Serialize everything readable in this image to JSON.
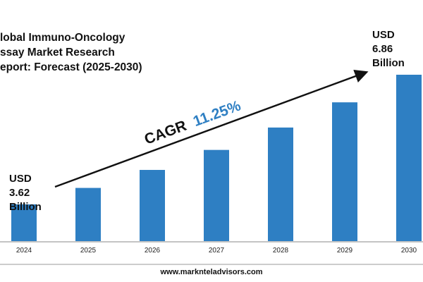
{
  "chart_data": {
    "type": "bar",
    "title_lines": [
      "lobal Immuno-Oncology",
      "ssay Market Research",
      "eport: Forecast (2025-2030)"
    ],
    "categories": [
      "2024",
      "2025",
      "2026",
      "2027",
      "2028",
      "2029",
      "2030"
    ],
    "values": [
      3.62,
      4.03,
      4.48,
      4.98,
      5.54,
      6.17,
      6.86
    ],
    "unit": "USD Billion",
    "ylim": [
      2.7,
      7.0
    ],
    "bar_color": "#2e7fc3",
    "start_label": [
      "USD",
      "3.62",
      "Billion"
    ],
    "end_label": [
      "USD",
      "6.86",
      "Billion"
    ],
    "cagr": {
      "prefix": "CAGR",
      "value": "11.25%",
      "prefix_color": "#111111",
      "value_color": "#2e7fc3"
    },
    "grid": false,
    "legend": "none"
  },
  "footer": {
    "website": "www.marknteladvisors.com"
  }
}
